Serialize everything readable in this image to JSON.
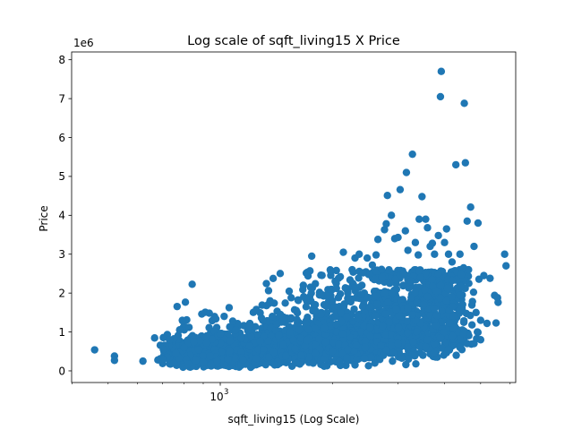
{
  "chart_data": {
    "type": "scatter",
    "title": "Log scale of sqft_living15 X Price",
    "xlabel": "sqft_living15 (Log Scale)",
    "ylabel": "Price",
    "y_offset_label": "1e6",
    "x_scale": "log",
    "xlim": [
      399,
      6210
    ],
    "ylim": [
      -300000,
      8200000
    ],
    "x_tick_labels": [
      {
        "value": 1000,
        "label": "10",
        "exponent": "3"
      }
    ],
    "y_ticks": [
      0,
      1000000,
      2000000,
      3000000,
      4000000,
      5000000,
      6000000,
      7000000,
      8000000
    ],
    "y_tick_labels": [
      "0",
      "1",
      "2",
      "3",
      "4",
      "5",
      "6",
      "7",
      "8"
    ],
    "grid": false,
    "color": "#1f77b4",
    "points": [
      [
        460,
        540000
      ],
      [
        520,
        380000
      ],
      [
        520,
        270000
      ],
      [
        620,
        250000
      ],
      [
        880,
        770000
      ],
      [
        950,
        820000
      ],
      [
        1080,
        1280000
      ],
      [
        1140,
        840000
      ],
      [
        1250,
        1580000
      ],
      [
        1380,
        1400000
      ],
      [
        1420,
        1200000
      ],
      [
        1480,
        1380000
      ],
      [
        1550,
        1880000
      ],
      [
        1620,
        1810000
      ],
      [
        1720,
        2440000
      ],
      [
        1760,
        2950000
      ],
      [
        1800,
        2240000
      ],
      [
        1860,
        1950000
      ],
      [
        1980,
        2560000
      ],
      [
        2050,
        2120000
      ],
      [
        2100,
        2420000
      ],
      [
        2140,
        3050000
      ],
      [
        2260,
        2600000
      ],
      [
        2300,
        2900000
      ],
      [
        2360,
        3000000
      ],
      [
        2420,
        2520000
      ],
      [
        2480,
        2900000
      ],
      [
        2560,
        2720000
      ],
      [
        2620,
        2980000
      ],
      [
        2650,
        3380000
      ],
      [
        2710,
        2610000
      ],
      [
        2760,
        3630000
      ],
      [
        2790,
        3780000
      ],
      [
        2810,
        4510000
      ],
      [
        2880,
        4000000
      ],
      [
        2940,
        3400000
      ],
      [
        3000,
        3430000
      ],
      [
        3040,
        4660000
      ],
      [
        3140,
        3600000
      ],
      [
        3160,
        5100000
      ],
      [
        3190,
        3100000
      ],
      [
        3280,
        5570000
      ],
      [
        3340,
        3300000
      ],
      [
        3400,
        2980000
      ],
      [
        3420,
        3900000
      ],
      [
        3480,
        4480000
      ],
      [
        3560,
        3900000
      ],
      [
        3600,
        3680000
      ],
      [
        3660,
        3200000
      ],
      [
        3710,
        3280000
      ],
      [
        3760,
        3000000
      ],
      [
        3850,
        3480000
      ],
      [
        3900,
        7050000
      ],
      [
        3920,
        7700000
      ],
      [
        4000,
        3300000
      ],
      [
        4050,
        3650000
      ],
      [
        4100,
        3000000
      ],
      [
        4190,
        2800000
      ],
      [
        4290,
        5300000
      ],
      [
        4400,
        3000000
      ],
      [
        4500,
        2650000
      ],
      [
        4520,
        6880000
      ],
      [
        4550,
        5350000
      ],
      [
        4600,
        3850000
      ],
      [
        4640,
        2600000
      ],
      [
        4700,
        4210000
      ],
      [
        4800,
        3200000
      ],
      [
        4860,
        1500000
      ],
      [
        4920,
        3800000
      ],
      [
        5100,
        2450000
      ],
      [
        5300,
        2380000
      ],
      [
        5450,
        1940000
      ],
      [
        5550,
        1880000
      ],
      [
        5570,
        1760000
      ],
      [
        5800,
        3000000
      ],
      [
        5850,
        2700000
      ],
      [
        5000,
        1300000
      ],
      [
        5200,
        1220000
      ],
      [
        5500,
        1230000
      ],
      [
        4400,
        1950000
      ],
      [
        4200,
        1650000
      ],
      [
        4050,
        1800000
      ],
      [
        3900,
        2200000
      ],
      [
        3800,
        2050000
      ],
      [
        3700,
        2350000
      ],
      [
        3550,
        2500000
      ],
      [
        3450,
        2400000
      ],
      [
        3250,
        2300000
      ],
      [
        3100,
        2200000
      ],
      [
        2950,
        2350000
      ],
      [
        2850,
        2250000
      ],
      [
        2600,
        2350000
      ],
      [
        2400,
        2200000
      ],
      [
        2200,
        2000000
      ],
      [
        2000,
        1800000
      ],
      [
        1900,
        1700000
      ],
      [
        1700,
        1650000
      ],
      [
        1600,
        1550000
      ],
      [
        1450,
        1450000
      ],
      [
        1300,
        1300000
      ],
      [
        1200,
        1150000
      ],
      [
        1100,
        1050000
      ],
      [
        1000,
        950000
      ],
      [
        920,
        900000
      ],
      [
        850,
        750000
      ],
      [
        800,
        600000
      ],
      [
        760,
        450000
      ],
      [
        720,
        350000
      ],
      [
        700,
        300000
      ],
      [
        680,
        280000
      ],
      [
        750,
        200000
      ],
      [
        820,
        180000
      ],
      [
        900,
        220000
      ],
      [
        980,
        250000
      ],
      [
        1050,
        300000
      ],
      [
        1150,
        280000
      ],
      [
        1250,
        320000
      ],
      [
        1350,
        350000
      ],
      [
        1500,
        380000
      ],
      [
        1650,
        400000
      ],
      [
        1800,
        450000
      ],
      [
        2000,
        500000
      ],
      [
        2200,
        550000
      ],
      [
        2450,
        600000
      ],
      [
        2700,
        650000
      ],
      [
        3000,
        700000
      ],
      [
        3300,
        750000
      ],
      [
        3600,
        800000
      ],
      [
        3900,
        850000
      ],
      [
        4200,
        900000
      ],
      [
        4500,
        950000
      ],
      [
        4900,
        1000000
      ],
      [
        2300,
        150000
      ],
      [
        2600,
        200000
      ],
      [
        2900,
        250000
      ],
      [
        3200,
        300000
      ],
      [
        3500,
        400000
      ],
      [
        3800,
        500000
      ],
      [
        4100,
        550000
      ],
      [
        4400,
        600000
      ],
      [
        4800,
        700000
      ],
      [
        1600,
        200000
      ],
      [
        1400,
        150000
      ],
      [
        1900,
        120000
      ],
      [
        2100,
        140000
      ],
      [
        2500,
        130000
      ],
      [
        3150,
        160000
      ],
      [
        3350,
        180000
      ],
      [
        3750,
        450000
      ],
      [
        4300,
        400000
      ],
      [
        4600,
        700000
      ],
      [
        5000,
        800000
      ]
    ]
  }
}
